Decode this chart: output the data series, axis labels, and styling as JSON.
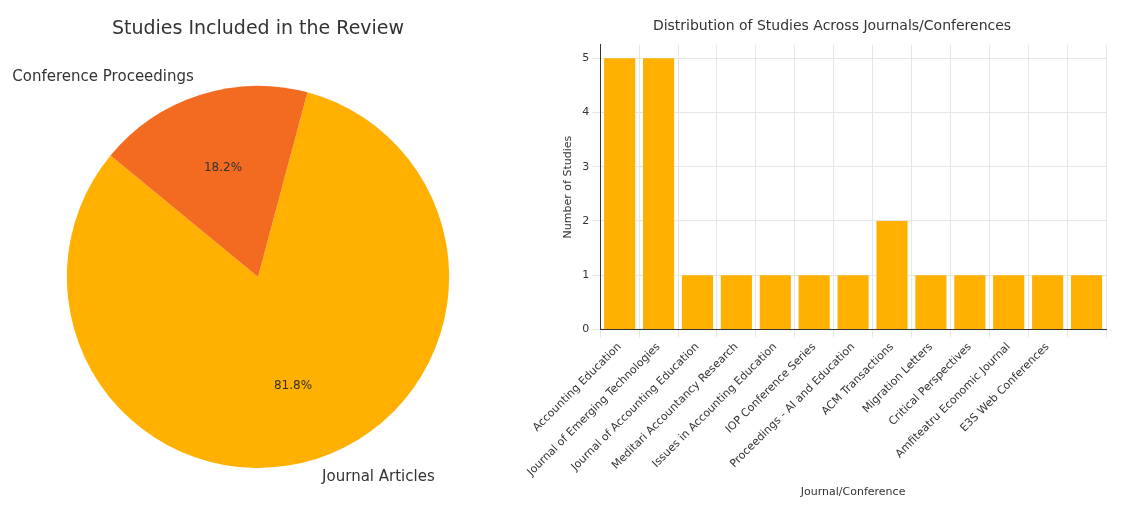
{
  "chart_data": [
    {
      "type": "pie",
      "title": "Studies Included in the Review",
      "categories": [
        "Journal Articles",
        "Conference Proceedings"
      ],
      "values": [
        81.8,
        18.2
      ],
      "colors": [
        "#ffb000",
        "#f26b21"
      ],
      "value_labels": [
        "81.8%",
        "18.2%"
      ],
      "legend": false
    },
    {
      "type": "bar",
      "title": "Distribution of Studies Across Journals/Conferences",
      "xlabel": "Journal/Conference",
      "ylabel": "Number of Studies",
      "categories": [
        "Accounting Education",
        "Journal of Emerging Technologies",
        "Journal of Accounting Education",
        "Meditari Accountancy Research",
        "Issues in Accounting Education",
        "IOP Conference Series",
        "Proceedings - AI and Education",
        "ACM Transactions",
        "Migration Letters",
        "Critical Perspectives",
        "Amfiteatru Economic Journal",
        "E3S Web Conferences",
        null
      ],
      "values": [
        5,
        5,
        1,
        1,
        1,
        1,
        1,
        2,
        1,
        1,
        1,
        1,
        1
      ],
      "color": "#ffb000",
      "ylim": [
        0,
        5.25
      ],
      "yticks": [
        0,
        1,
        2,
        3,
        4,
        5
      ],
      "grid": true,
      "legend": false
    }
  ]
}
